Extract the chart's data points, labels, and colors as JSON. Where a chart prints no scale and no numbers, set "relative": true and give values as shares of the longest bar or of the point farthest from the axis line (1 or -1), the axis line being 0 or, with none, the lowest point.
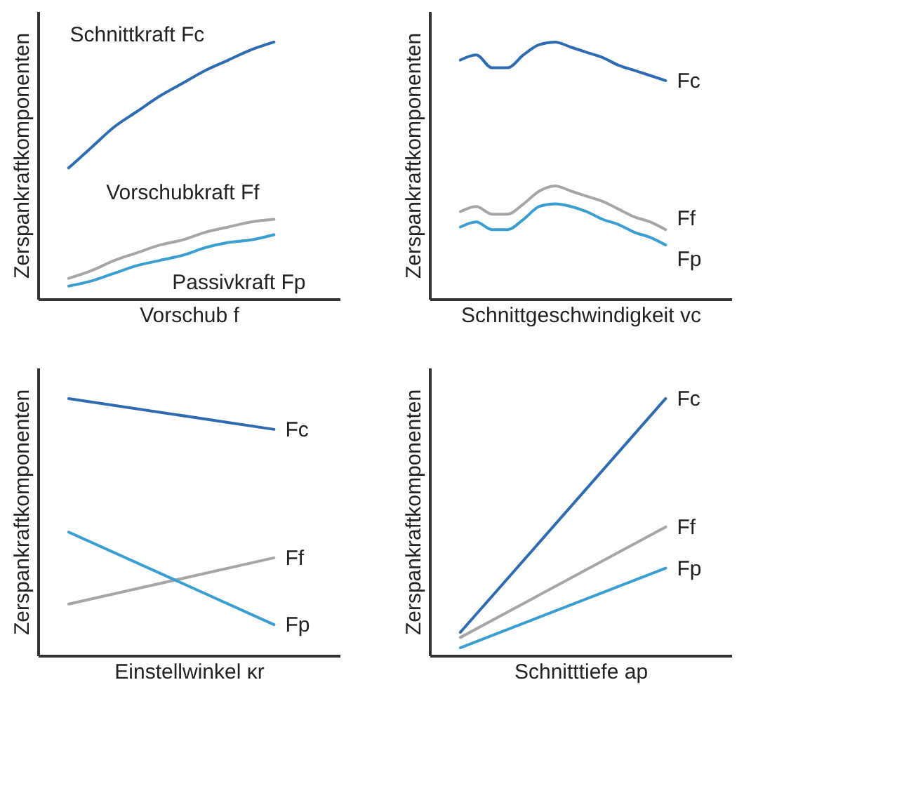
{
  "chart_data": [
    {
      "type": "line",
      "relative": true,
      "tick_labels": false,
      "xlabel": "Vorschub  f",
      "ylabel": "Zerspankraftkomponenten",
      "categories": [
        null,
        null,
        null,
        null,
        null,
        null,
        null,
        null,
        null,
        null
      ],
      "series": [
        {
          "name": "Schnittkraft Fc",
          "color": "#2e6bb0",
          "values": [
            0.51,
            0.59,
            0.67,
            0.73,
            0.79,
            0.84,
            0.89,
            0.93,
            0.97,
            1.0
          ]
        },
        {
          "name": "Vorschubkraft Ff",
          "color": "#a6a6a8",
          "values": [
            0.08,
            0.11,
            0.15,
            0.18,
            0.21,
            0.23,
            0.26,
            0.28,
            0.3,
            0.31
          ]
        },
        {
          "name": "Passivkraft Fp",
          "color": "#3a9fd0",
          "values": [
            0.05,
            0.07,
            0.1,
            0.13,
            0.15,
            0.17,
            0.2,
            0.22,
            0.23,
            0.25
          ]
        }
      ]
    },
    {
      "type": "line",
      "relative": true,
      "tick_labels": false,
      "xlabel": "Schnittgeschwindigkeit vc",
      "ylabel": "Zerspankraftkomponenten",
      "categories": [
        null,
        null,
        null,
        null,
        null,
        null,
        null,
        null,
        null,
        null,
        null,
        null,
        null,
        null
      ],
      "series": [
        {
          "name": "Fc",
          "color": "#2e6bb0",
          "values": [
            0.93,
            0.95,
            0.9,
            0.9,
            0.95,
            0.99,
            1.0,
            0.98,
            0.96,
            0.94,
            0.91,
            0.89,
            0.87,
            0.85
          ]
        },
        {
          "name": "Ff",
          "color": "#a6a6a8",
          "values": [
            0.34,
            0.36,
            0.33,
            0.33,
            0.37,
            0.42,
            0.44,
            0.42,
            0.4,
            0.38,
            0.35,
            0.32,
            0.3,
            0.27
          ]
        },
        {
          "name": "Fp",
          "color": "#3a9fd0",
          "values": [
            0.28,
            0.3,
            0.27,
            0.27,
            0.31,
            0.36,
            0.37,
            0.36,
            0.34,
            0.31,
            0.29,
            0.26,
            0.24,
            0.21
          ]
        }
      ]
    },
    {
      "type": "line",
      "relative": true,
      "tick_labels": false,
      "xlabel": "Einstellwinkel  κr",
      "ylabel": "Zerspankraftkomponenten",
      "categories": [
        null,
        null
      ],
      "series": [
        {
          "name": "Fc",
          "color": "#2e6bb0",
          "values": [
            1.0,
            0.88
          ]
        },
        {
          "name": "Ff",
          "color": "#a6a6a8",
          "values": [
            0.2,
            0.38
          ]
        },
        {
          "name": "Fp",
          "color": "#3a9fd0",
          "values": [
            0.48,
            0.12
          ]
        }
      ]
    },
    {
      "type": "line",
      "relative": true,
      "tick_labels": false,
      "xlabel": "Schnitttiefe  ap",
      "ylabel": "Zerspankraftkomponenten",
      "categories": [
        null,
        null
      ],
      "series": [
        {
          "name": "Fc",
          "color": "#2e6bb0",
          "values": [
            0.09,
            1.0
          ]
        },
        {
          "name": "Ff",
          "color": "#a6a6a8",
          "values": [
            0.07,
            0.5
          ]
        },
        {
          "name": "Fp",
          "color": "#3a9fd0",
          "values": [
            0.03,
            0.34
          ]
        }
      ]
    }
  ]
}
